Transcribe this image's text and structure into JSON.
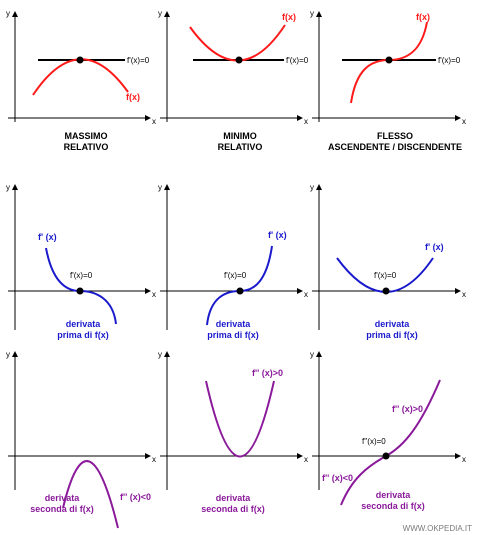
{
  "colors": {
    "function": "#ff1a1a",
    "first_derivative": "#1a1acc",
    "second_derivative": "#8a1a9a",
    "axis": "#000000",
    "tangent": "#000000"
  },
  "axes": {
    "x": "x",
    "y": "y"
  },
  "row1": {
    "panel1": {
      "f_label": "f(x)",
      "tangent_label": "f'(x)=0",
      "caption_1": "MASSIMO",
      "caption_2": "RELATIVO"
    },
    "panel2": {
      "f_label": "f(x)",
      "tangent_label": "f'(x)=0",
      "caption_1": "MINIMO",
      "caption_2": "RELATIVO"
    },
    "panel3": {
      "f_label": "f(x)",
      "tangent_label": "f'(x)=0",
      "caption_1": "FLESSO",
      "caption_2": "ASCENDENTE / DISCENDENTE"
    }
  },
  "row2": {
    "panel1": {
      "deriv_label": "f' (x)",
      "zero_label": "f'(x)=0",
      "caption_1": "derivata",
      "caption_2": "prima di f(x)"
    },
    "panel2": {
      "deriv_label": "f' (x)",
      "zero_label": "f'(x)=0",
      "caption_1": "derivata",
      "caption_2": "prima di f(x)"
    },
    "panel3": {
      "deriv_label": "f' (x)",
      "zero_label": "f'(x)=0",
      "caption_1": "derivata",
      "caption_2": "prima di f(x)"
    }
  },
  "row3": {
    "panel1": {
      "sign_label": "f'' (x)<0",
      "caption_1": "derivata",
      "caption_2": "seconda di f(x)"
    },
    "panel2": {
      "sign_label": "f'' (x)>0",
      "caption_1": "derivata",
      "caption_2": "seconda di f(x)"
    },
    "panel3": {
      "pos_label": "f'' (x)>0",
      "zero_label": "f''(x)=0",
      "neg_label": "f'' (x)<0",
      "caption_1": "derivata",
      "caption_2": "seconda di f(x)"
    }
  },
  "watermark": "WWW.OKPEDIA.IT"
}
